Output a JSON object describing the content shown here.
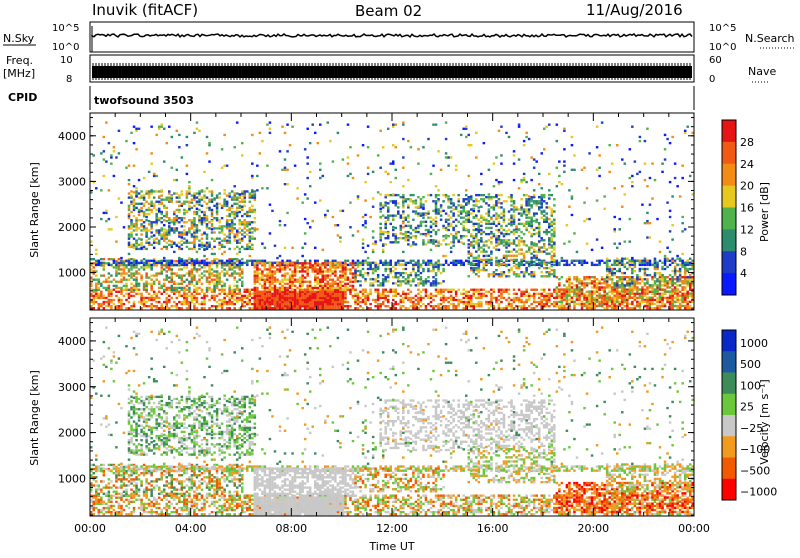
{
  "header": {
    "station": "Inuvik (fitACF)",
    "beam": "Beam 02",
    "date": "11/Aug/2016"
  },
  "strip": {
    "nsky_label": "N.Sky",
    "nsky_ticks": [
      "10^5",
      "10^0"
    ],
    "nsearch_label": "N.Search",
    "nsearch_ticks": [
      "10^5",
      "10^0"
    ],
    "freq_label_1": "Freq.",
    "freq_label_2": "[MHz]",
    "freq_ticks": [
      "10",
      "8"
    ],
    "nave_label": "Nave",
    "nave_ticks": [
      "60",
      "0"
    ],
    "cpid_label": "CPID",
    "cpid_value": "twofsound 3503"
  },
  "colors": {
    "power": [
      "#0a19ff",
      "#1e3cc8",
      "#2d8c6e",
      "#4fb24a",
      "#e6c81e",
      "#f28c14",
      "#f05a14",
      "#e61414"
    ],
    "velocity": [
      "#ff0000",
      "#f25a00",
      "#f29a1e",
      "#c8c8c8",
      "#6bc83c",
      "#3c8c5a",
      "#1e5aa0",
      "#0a28c8"
    ]
  },
  "chart_data": [
    {
      "type": "heatmap",
      "name": "power",
      "ylabel": "Slant Range [km]",
      "xlabel": "",
      "x_range_hours": [
        0,
        24
      ],
      "x_tick_labels": [
        "00:00",
        "04:00",
        "08:00",
        "12:00",
        "16:00",
        "20:00",
        "00:00"
      ],
      "ylim": [
        180,
        4500
      ],
      "y_ticks": [
        1000,
        2000,
        3000,
        4000
      ],
      "colorbar": {
        "label": "Power [dB]",
        "ticks": [
          "4",
          "8",
          "12",
          "16",
          "20",
          "24",
          "28"
        ]
      }
    },
    {
      "type": "heatmap",
      "name": "velocity",
      "ylabel": "Slant Range [km]",
      "xlabel": "Time UT",
      "x_range_hours": [
        0,
        24
      ],
      "x_tick_labels": [
        "00:00",
        "04:00",
        "08:00",
        "12:00",
        "16:00",
        "20:00",
        "00:00"
      ],
      "ylim": [
        180,
        4500
      ],
      "y_ticks": [
        1000,
        2000,
        3000,
        4000
      ],
      "colorbar": {
        "label": "Velocity [m s⁻¹]",
        "ticks": [
          "1000",
          "500",
          "100",
          "25",
          "−25",
          "−100",
          "−500",
          "−1000"
        ]
      }
    }
  ]
}
